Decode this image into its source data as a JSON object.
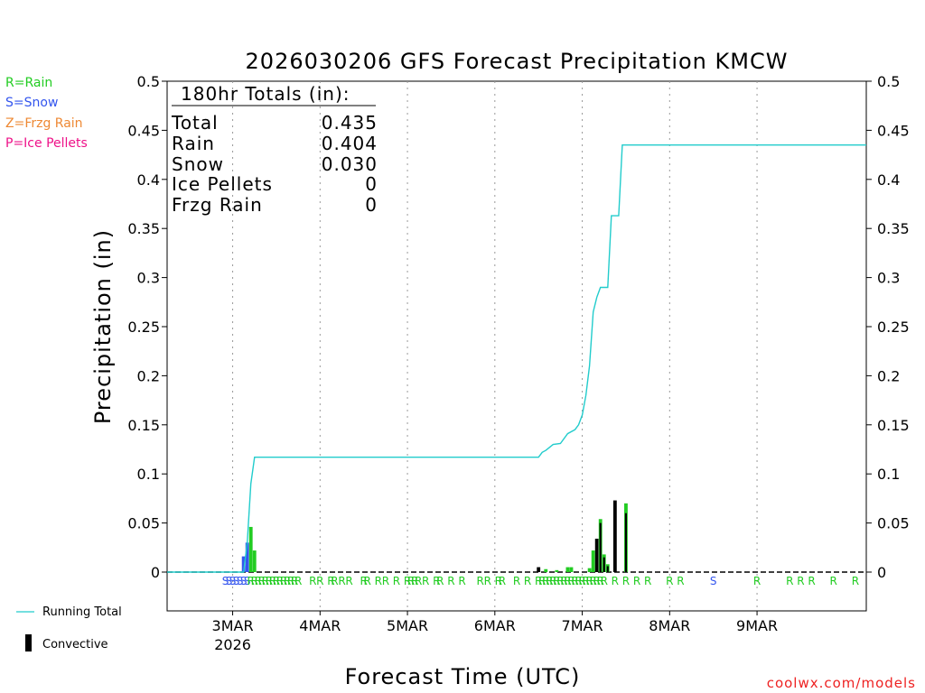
{
  "title": "2026030206 GFS Forecast Precipitation KMCW",
  "ylabel": "Precipitation (in)",
  "xlabel": "Forecast Time (UTC)",
  "credit": "coolwx.com/models",
  "colors": {
    "rain": "#22cc22",
    "snow": "#3355ee",
    "frzg": "#ee8833",
    "ice": "#ee1188",
    "total": "#22cccc",
    "convective": "#000000",
    "credit": "#ee2222"
  },
  "legend_types": [
    {
      "label": "R=Rain",
      "color_key": "rain"
    },
    {
      "label": "S=Snow",
      "color_key": "snow"
    },
    {
      "label": "Z=Frzg Rain",
      "color_key": "frzg"
    },
    {
      "label": "P=Ice Pellets",
      "color_key": "ice"
    }
  ],
  "legend_series": {
    "running_total": "Running Total",
    "convective": "Convective"
  },
  "totals_box": {
    "header": "180hr Totals (in):",
    "rows": [
      {
        "label": "Total",
        "value": "0.435"
      },
      {
        "label": "Rain",
        "value": "0.404"
      },
      {
        "label": "Snow",
        "value": "0.030"
      },
      {
        "label": "Ice Pellets",
        "value": "0"
      },
      {
        "label": "Frzg Rain",
        "value": "0"
      }
    ]
  },
  "chart_data": {
    "type": "bar",
    "title": "2026030206 GFS Forecast Precipitation KMCW",
    "xlabel": "Forecast Time (UTC)",
    "ylabel": "Precipitation (in)",
    "x_unit": "forecast hour",
    "xlim": [
      -18,
      174
    ],
    "ylim": [
      -0.04,
      0.5
    ],
    "yticks": [
      0,
      0.05,
      0.1,
      0.15,
      0.2,
      0.25,
      0.3,
      0.35,
      0.4,
      0.45,
      0.5
    ],
    "ytick_labels": [
      "0",
      "0.05",
      "0.1",
      "0.15",
      "0.2",
      "0.25",
      "0.3",
      "0.35",
      "0.4",
      "0.45",
      "0.5"
    ],
    "xticks": [
      {
        "hour": 0,
        "label": "3MAR",
        "sublabel": "2026"
      },
      {
        "hour": 24,
        "label": "4MAR"
      },
      {
        "hour": 48,
        "label": "5MAR"
      },
      {
        "hour": 72,
        "label": "6MAR"
      },
      {
        "hour": 96,
        "label": "7MAR"
      },
      {
        "hour": 120,
        "label": "8MAR"
      },
      {
        "hour": 144,
        "label": "9MAR"
      }
    ],
    "gridlines_vertical": true,
    "bars": [
      {
        "hour": 3,
        "value": 0.016,
        "type": "snow"
      },
      {
        "hour": 4,
        "value": 0.03,
        "type": "snow"
      },
      {
        "hour": 5,
        "value": 0.046,
        "type": "rain"
      },
      {
        "hour": 6,
        "value": 0.022,
        "type": "rain"
      },
      {
        "hour": 84,
        "value": 0.005,
        "type": "convective"
      },
      {
        "hour": 86,
        "value": 0.003,
        "type": "rain"
      },
      {
        "hour": 89,
        "value": 0.002,
        "type": "rain"
      },
      {
        "hour": 92,
        "value": 0.005,
        "type": "rain"
      },
      {
        "hour": 93,
        "value": 0.005,
        "type": "rain"
      },
      {
        "hour": 98,
        "value": 0.004,
        "type": "rain"
      },
      {
        "hour": 99,
        "value": 0.022,
        "type": "rain"
      },
      {
        "hour": 100,
        "value": 0.034,
        "type": "convective"
      },
      {
        "hour": 101,
        "value": 0.054,
        "type": "rain"
      },
      {
        "hour": 102,
        "value": 0.018,
        "type": "rain"
      },
      {
        "hour": 103,
        "value": 0.008,
        "type": "rain"
      },
      {
        "hour": 105,
        "value": 0.073,
        "type": "convective"
      },
      {
        "hour": 108,
        "value": 0.07,
        "type": "rain"
      }
    ],
    "convective_overlays": [
      {
        "hour": 101,
        "value": 0.05
      },
      {
        "hour": 102,
        "value": 0.015
      },
      {
        "hour": 103,
        "value": 0.006
      },
      {
        "hour": 108,
        "value": 0.06
      }
    ],
    "running_total": [
      {
        "hour": -18,
        "value": 0
      },
      {
        "hour": 3,
        "value": 0
      },
      {
        "hour": 4,
        "value": 0.03
      },
      {
        "hour": 5,
        "value": 0.09
      },
      {
        "hour": 6,
        "value": 0.117
      },
      {
        "hour": 18,
        "value": 0.117
      },
      {
        "hour": 84,
        "value": 0.117
      },
      {
        "hour": 85,
        "value": 0.122
      },
      {
        "hour": 86,
        "value": 0.124
      },
      {
        "hour": 88,
        "value": 0.13
      },
      {
        "hour": 90,
        "value": 0.131
      },
      {
        "hour": 92,
        "value": 0.141
      },
      {
        "hour": 94,
        "value": 0.145
      },
      {
        "hour": 95,
        "value": 0.15
      },
      {
        "hour": 96,
        "value": 0.16
      },
      {
        "hour": 97,
        "value": 0.18
      },
      {
        "hour": 98,
        "value": 0.21
      },
      {
        "hour": 99,
        "value": 0.265
      },
      {
        "hour": 100,
        "value": 0.28
      },
      {
        "hour": 101,
        "value": 0.29
      },
      {
        "hour": 103,
        "value": 0.29
      },
      {
        "hour": 104,
        "value": 0.363
      },
      {
        "hour": 106,
        "value": 0.363
      },
      {
        "hour": 107,
        "value": 0.435
      },
      {
        "hour": 174,
        "value": 0.435
      }
    ],
    "precip_type_markers": [
      {
        "hour": -2,
        "code": "S"
      },
      {
        "hour": -1,
        "code": "S"
      },
      {
        "hour": 0,
        "code": "S"
      },
      {
        "hour": 1,
        "code": "S"
      },
      {
        "hour": 2,
        "code": "S"
      },
      {
        "hour": 3,
        "code": "S"
      },
      {
        "hour": 4,
        "code": "S"
      },
      {
        "hour": 5,
        "code": "R"
      },
      {
        "hour": 6,
        "code": "R"
      },
      {
        "hour": 7,
        "code": "R"
      },
      {
        "hour": 8,
        "code": "R"
      },
      {
        "hour": 9,
        "code": "R"
      },
      {
        "hour": 10,
        "code": "R"
      },
      {
        "hour": 11,
        "code": "R"
      },
      {
        "hour": 12,
        "code": "R"
      },
      {
        "hour": 13,
        "code": "R"
      },
      {
        "hour": 14,
        "code": "R"
      },
      {
        "hour": 15,
        "code": "R"
      },
      {
        "hour": 16,
        "code": "R"
      },
      {
        "hour": 17,
        "code": "R"
      },
      {
        "hour": 18,
        "code": "R"
      },
      {
        "hour": 22,
        "code": "R"
      },
      {
        "hour": 24,
        "code": "R"
      },
      {
        "hour": 27,
        "code": "R"
      },
      {
        "hour": 28,
        "code": "R"
      },
      {
        "hour": 30,
        "code": "R"
      },
      {
        "hour": 32,
        "code": "R"
      },
      {
        "hour": 36,
        "code": "R"
      },
      {
        "hour": 37,
        "code": "R"
      },
      {
        "hour": 40,
        "code": "R"
      },
      {
        "hour": 42,
        "code": "R"
      },
      {
        "hour": 45,
        "code": "R"
      },
      {
        "hour": 48,
        "code": "R"
      },
      {
        "hour": 49,
        "code": "R"
      },
      {
        "hour": 50,
        "code": "R"
      },
      {
        "hour": 51,
        "code": "R"
      },
      {
        "hour": 53,
        "code": "R"
      },
      {
        "hour": 56,
        "code": "R"
      },
      {
        "hour": 57,
        "code": "R"
      },
      {
        "hour": 60,
        "code": "R"
      },
      {
        "hour": 63,
        "code": "R"
      },
      {
        "hour": 68,
        "code": "R"
      },
      {
        "hour": 70,
        "code": "R"
      },
      {
        "hour": 73,
        "code": "R"
      },
      {
        "hour": 74,
        "code": "R"
      },
      {
        "hour": 78,
        "code": "R"
      },
      {
        "hour": 81,
        "code": "R"
      },
      {
        "hour": 84,
        "code": "R"
      },
      {
        "hour": 85,
        "code": "R"
      },
      {
        "hour": 86,
        "code": "R"
      },
      {
        "hour": 87,
        "code": "R"
      },
      {
        "hour": 88,
        "code": "R"
      },
      {
        "hour": 89,
        "code": "R"
      },
      {
        "hour": 90,
        "code": "R"
      },
      {
        "hour": 91,
        "code": "R"
      },
      {
        "hour": 92,
        "code": "R"
      },
      {
        "hour": 93,
        "code": "R"
      },
      {
        "hour": 94,
        "code": "R"
      },
      {
        "hour": 95,
        "code": "R"
      },
      {
        "hour": 96,
        "code": "R"
      },
      {
        "hour": 97,
        "code": "R"
      },
      {
        "hour": 98,
        "code": "R"
      },
      {
        "hour": 99,
        "code": "R"
      },
      {
        "hour": 100,
        "code": "R"
      },
      {
        "hour": 101,
        "code": "R"
      },
      {
        "hour": 102,
        "code": "R"
      },
      {
        "hour": 105,
        "code": "R"
      },
      {
        "hour": 108,
        "code": "R"
      },
      {
        "hour": 111,
        "code": "R"
      },
      {
        "hour": 114,
        "code": "R"
      },
      {
        "hour": 120,
        "code": "R"
      },
      {
        "hour": 123,
        "code": "R"
      },
      {
        "hour": 132,
        "code": "S"
      },
      {
        "hour": 144,
        "code": "R"
      },
      {
        "hour": 153,
        "code": "R"
      },
      {
        "hour": 156,
        "code": "R"
      },
      {
        "hour": 159,
        "code": "R"
      },
      {
        "hour": 165,
        "code": "R"
      },
      {
        "hour": 171,
        "code": "R"
      }
    ]
  }
}
